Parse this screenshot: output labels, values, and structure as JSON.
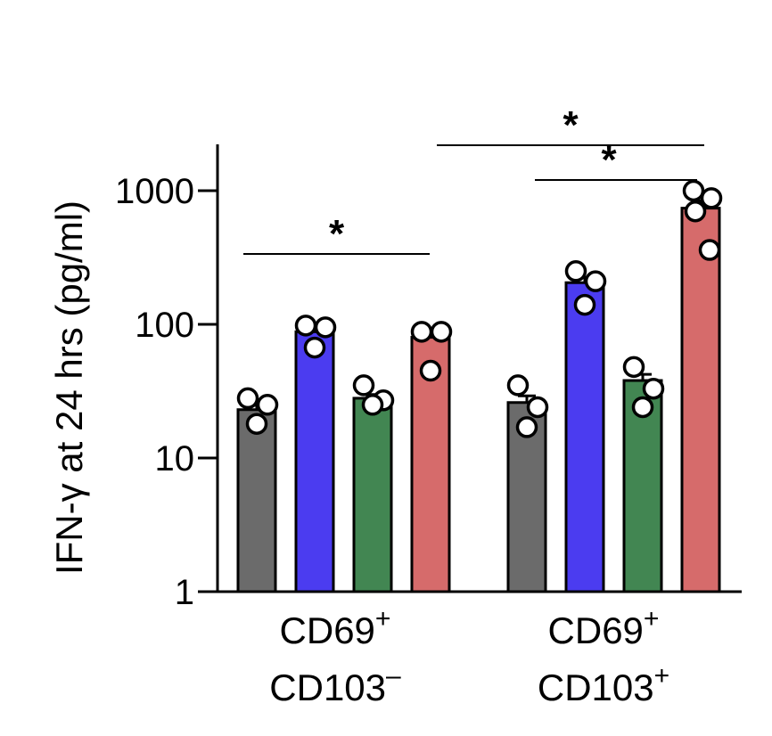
{
  "chart_data": {
    "type": "bar",
    "ylabel": "IFN-γ at 24 hrs  (pg/ml)",
    "yscale": "log",
    "ylim": [
      1,
      2000
    ],
    "yticks": [
      {
        "value": 1,
        "label": "1"
      },
      {
        "value": 10,
        "label": "10"
      },
      {
        "value": 100,
        "label": "100"
      },
      {
        "value": 1000,
        "label": "1000"
      }
    ],
    "colors": [
      "#6b6b6b",
      "#4b3cf0",
      "#428652",
      "#d66b6b"
    ],
    "groups": [
      {
        "name_line1": "CD69",
        "sup1": "+",
        "name_line2": "CD103",
        "sup2": "–",
        "bars": [
          {
            "value": 23,
            "points": [
              28,
              25,
              18
            ]
          },
          {
            "value": 88,
            "points": [
              98,
              95,
              67
            ]
          },
          {
            "value": 28,
            "points": [
              35,
              27,
              25
            ]
          },
          {
            "value": 80,
            "points": [
              88,
              88,
              45
            ]
          }
        ]
      },
      {
        "name_line1": "CD69",
        "sup1": "+",
        "name_line2": "CD103",
        "sup2": "+",
        "bars": [
          {
            "value": 26,
            "points": [
              35,
              24,
              17
            ]
          },
          {
            "value": 205,
            "points": [
              250,
              210,
              140
            ]
          },
          {
            "value": 38,
            "points": [
              48,
              33,
              24
            ]
          },
          {
            "value": 740,
            "points": [
              1000,
              880,
              700,
              360
            ]
          }
        ]
      }
    ],
    "significance": [
      {
        "group": 0,
        "from_bar": 0,
        "to_bar": 3,
        "label": "*"
      },
      {
        "group": 1,
        "from_bar": 1,
        "to_bar": 3,
        "label": "*"
      },
      {
        "group": 1,
        "from_bar": 0,
        "to_bar": 3,
        "label": "*"
      }
    ]
  }
}
